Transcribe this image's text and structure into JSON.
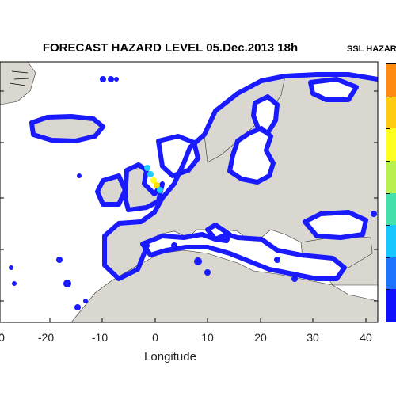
{
  "title": "FORECAST HAZARD LEVEL  05.Dec.2013 18h",
  "colorbar_title": "SSL HAZAR",
  "map": {
    "xlabel": "Longitude",
    "xticks": [
      "0",
      "-20",
      "-10",
      "0",
      "10",
      "20",
      "30",
      "40"
    ],
    "lon_range": [
      -30,
      42
    ],
    "lat_range": [
      27,
      73
    ],
    "land_color": "#d9d7cf",
    "ocean_color": "#ffffff",
    "coast_marker_color": "#1a1aff",
    "high_hazard_colors": [
      "#22ccff",
      "#ffff22",
      "#ffdd00"
    ]
  },
  "colorbar": {
    "levels": [
      "#1010ff",
      "#1e74ff",
      "#16c8ff",
      "#44e0aa",
      "#b8f050",
      "#ffff20",
      "#ffcc10",
      "#ff8c10"
    ]
  }
}
